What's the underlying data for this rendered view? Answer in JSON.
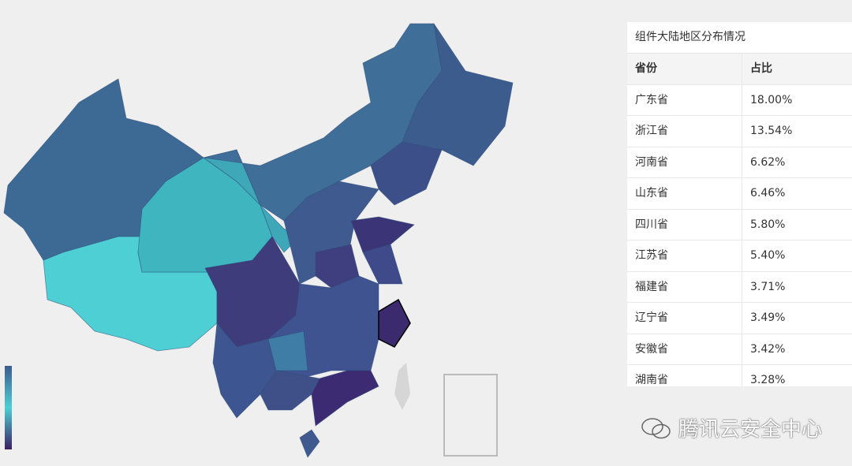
{
  "table": {
    "title": "组件大陆地区分布情况",
    "header": [
      "省份",
      "占比"
    ],
    "rows": [
      [
        "广东省",
        "18.00%"
      ],
      [
        "浙江省",
        "13.54%"
      ],
      [
        "河南省",
        "6.62%"
      ],
      [
        "山东省",
        "6.46%"
      ],
      [
        "四川省",
        "5.80%"
      ],
      [
        "江苏省",
        "5.40%"
      ],
      [
        "福建省",
        "3.71%"
      ],
      [
        "辽宁省",
        "3.49%"
      ],
      [
        "安徽省",
        "3.42%"
      ],
      [
        "湖南省",
        "3.28%"
      ]
    ]
  },
  "watermark": "腾讯云安全中心"
}
